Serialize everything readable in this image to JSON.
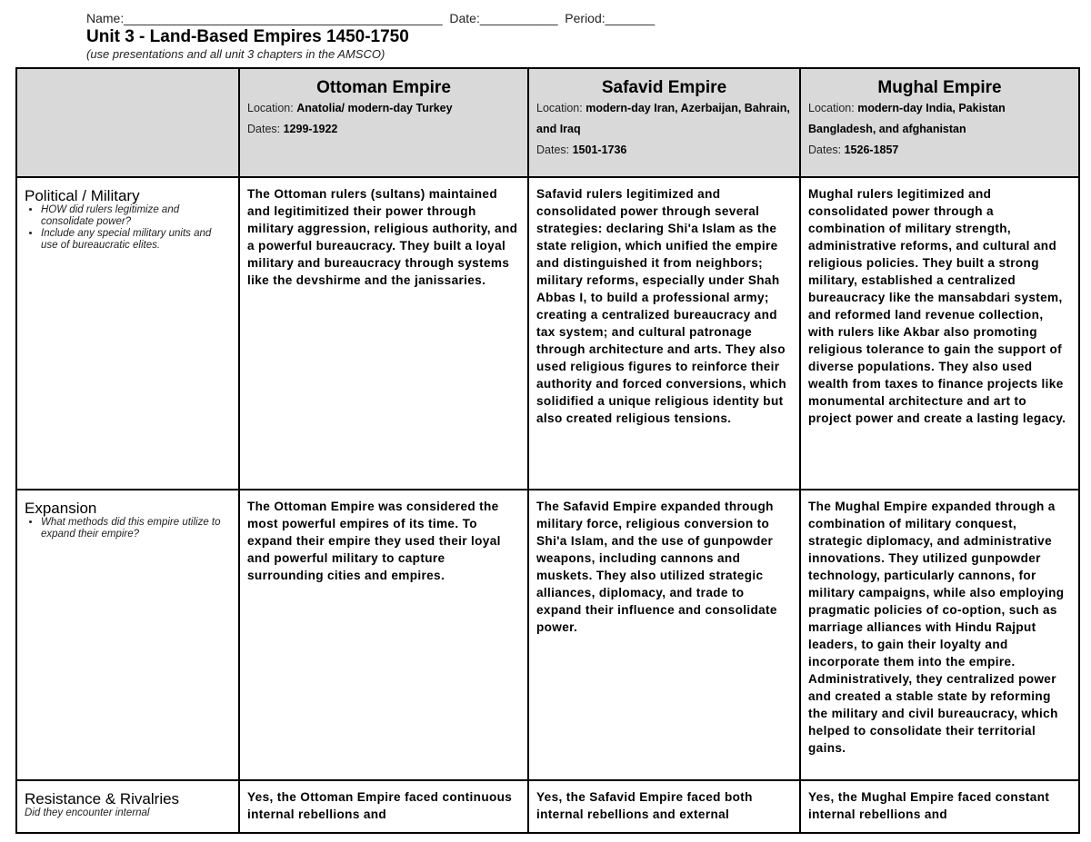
{
  "header": {
    "name_line": "Name:_____________________________________________  Date:___________  Period:_______",
    "title": "Unit 3 - Land-Based Empires 1450-1750",
    "subtitle": "(use presentations and all unit 3 chapters in the AMSCO)"
  },
  "empires": [
    {
      "name": "Ottoman Empire",
      "location_label": "Location: ",
      "location": "Anatolia/ modern-day Turkey",
      "dates_label": "Dates: ",
      "dates": "1299-1922"
    },
    {
      "name": "Safavid Empire",
      "location_label": "Location: ",
      "location": "modern-day Iran, Azerbaijan, Bahrain, and Iraq",
      "dates_label": "Dates: ",
      "dates": "1501-1736"
    },
    {
      "name": "Mughal Empire",
      "location_label": "Location: ",
      "location": "modern-day India, Pakistan Bangladesh, and afghanistan",
      "dates_label": "Dates: ",
      "dates": "1526-1857"
    }
  ],
  "rows": [
    {
      "heading": "Political / Military",
      "prompts": [
        "HOW did rulers legitimize and consolidate power?",
        "Include any special military units and use of bureaucratic elites."
      ],
      "cells": [
        "The Ottoman rulers (sultans) maintained and legitimitized their power through military aggression, religious authority, and a powerful bureaucracy. They built a loyal military and bureaucracy through systems like the devshirme and the janissaries.",
        "Safavid rulers legitimized and consolidated power through several strategies: declaring Shi'a Islam as the state religion, which unified the empire and distinguished it from neighbors; military reforms, especially under Shah Abbas I, to build a professional army; creating a centralized bureaucracy and tax system; and cultural patronage through architecture and arts. They also used religious figures to reinforce their authority and forced conversions, which solidified a unique religious identity but also created religious tensions.",
        "Mughal rulers legitimized and consolidated power through a combination of military strength, administrative reforms, and cultural and religious policies. They built a strong military, established a centralized bureaucracy like the mansabdari system, and reformed land revenue collection, with rulers like Akbar also promoting religious tolerance to gain the support of diverse populations. They also used wealth from taxes to finance projects like monumental architecture and art to project power and create a lasting legacy."
      ]
    },
    {
      "heading": "Expansion",
      "prompts": [
        "What methods did this empire utilize to expand their empire?"
      ],
      "cells": [
        "The Ottoman Empire was considered the most powerful empires of its time. To expand their empire they used their loyal and powerful military to capture surrounding cities and empires.",
        "The Safavid Empire expanded through military force, religious conversion to Shi'a Islam, and the use of gunpowder weapons, including cannons and muskets. They also utilized strategic alliances, diplomacy, and trade to expand their influence and consolidate power.",
        "The Mughal Empire expanded through a combination of military conquest, strategic diplomacy, and administrative innovations. They utilized gunpowder technology, particularly cannons, for military campaigns, while also employing pragmatic policies of co-option, such as marriage alliances with Hindu Rajput leaders, to gain their loyalty and incorporate them into the empire. Administratively, they centralized power and created a stable state by reforming the military and civil bureaucracy, which helped to consolidate their territorial gains."
      ]
    },
    {
      "heading": "Resistance & Rivalries",
      "question": "Did they encounter internal",
      "cells": [
        "Yes, the Ottoman Empire faced continuous internal rebellions and",
        "Yes, the Safavid Empire faced both internal rebellions and external",
        "Yes, the Mughal Empire faced constant internal rebellions and"
      ]
    }
  ]
}
